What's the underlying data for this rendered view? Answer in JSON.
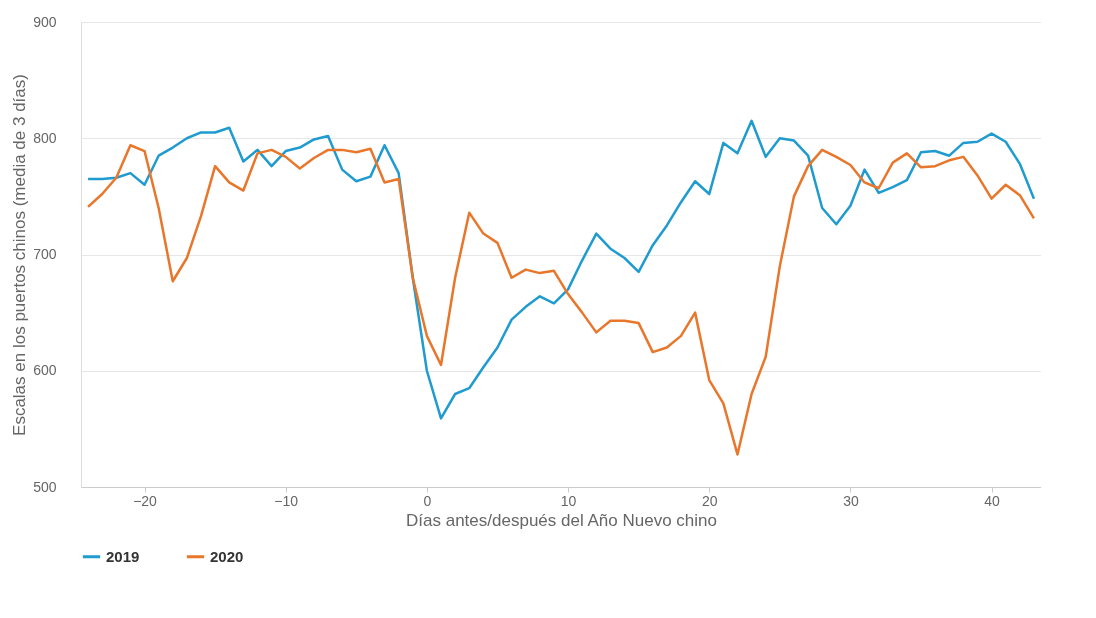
{
  "chart_data": {
    "type": "line",
    "xlabel": "Días antes/después del Año Nuevo chino",
    "ylabel": "Escalas en los puertos chinos (media de 3 días)",
    "x": [
      -24,
      -23,
      -22,
      -21,
      -20,
      -19,
      -18,
      -17,
      -16,
      -15,
      -14,
      -13,
      -12,
      -11,
      -10,
      -9,
      -8,
      -7,
      -6,
      -5,
      -4,
      -3,
      -2,
      -1,
      0,
      1,
      2,
      3,
      4,
      5,
      6,
      7,
      8,
      9,
      10,
      11,
      12,
      13,
      14,
      15,
      16,
      17,
      18,
      19,
      20,
      21,
      22,
      23,
      24,
      25,
      26,
      27,
      28,
      29,
      30,
      31,
      32,
      33,
      34,
      35,
      36,
      37,
      38,
      39,
      40,
      41,
      42,
      43
    ],
    "series": [
      {
        "name": "2019",
        "color": "#1f9bcf",
        "values": [
          765,
          765,
          766,
          770,
          760,
          785,
          792,
          800,
          805,
          805,
          809,
          780,
          790,
          776,
          789,
          792,
          799,
          802,
          773,
          763,
          767,
          794,
          770,
          680,
          600,
          559,
          580,
          585,
          603,
          620,
          644,
          655,
          664,
          658,
          670,
          695,
          718,
          705,
          697,
          685,
          708,
          725,
          745,
          763,
          752,
          796,
          787,
          815,
          784,
          800,
          798,
          785,
          740,
          726,
          742,
          773,
          753,
          758,
          764,
          788,
          789,
          785,
          796,
          797,
          804,
          797,
          778,
          748
        ]
      },
      {
        "name": "2020",
        "color": "#e8762b",
        "values": [
          741,
          752,
          766,
          794,
          789,
          740,
          677,
          697,
          733,
          776,
          762,
          755,
          787,
          790,
          784,
          774,
          783,
          790,
          790,
          788,
          791,
          762,
          765,
          680,
          630,
          605,
          680,
          736,
          718,
          710,
          680,
          687,
          684,
          686,
          666,
          650,
          633,
          643,
          643,
          641,
          616,
          620,
          630,
          650,
          592,
          572,
          528,
          580,
          612,
          690,
          750,
          776,
          790,
          784,
          777,
          762,
          757,
          779,
          787,
          775,
          776,
          781,
          784,
          768,
          748,
          760,
          751,
          731
        ]
      }
    ],
    "xlim": [
      -24.5,
      43.5
    ],
    "xticks": [
      -20,
      -10,
      0,
      10,
      20,
      30,
      40
    ],
    "ylim": [
      500,
      900
    ],
    "yticks": [
      500,
      600,
      700,
      800,
      900
    ],
    "grid": "y",
    "legend": "bottom",
    "marker": "none",
    "line_style": "solid"
  }
}
